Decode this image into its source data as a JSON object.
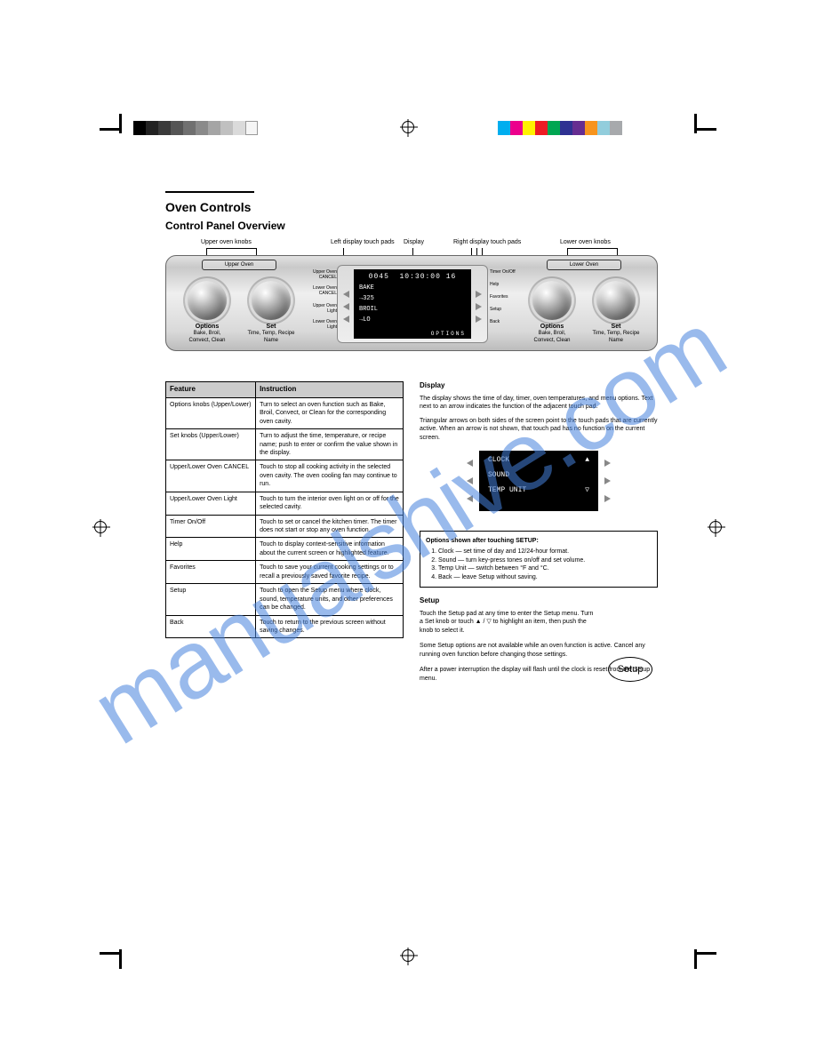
{
  "section": {
    "title": "Oven Controls",
    "subtitle": "Control Panel Overview"
  },
  "panel": {
    "upper_oven_label": "Upper Oven",
    "lower_oven_label": "Lower Oven",
    "knob_options_title": "Options",
    "knob_options_sub": "Bake, Broil, Convect, Clean",
    "knob_set_title": "Set",
    "knob_set_sub": "Time, Temp, Recipe Name",
    "side_labels": {
      "upper_cancel": "Upper Oven\nCANCEL",
      "lower_cancel": "Lower Oven\nCANCEL",
      "upper_light": "Upper Oven\nLight",
      "lower_light": "Lower Oven\nLight",
      "timer": "Timer\nOn/Off",
      "help": "Help",
      "favorites": "Favorites",
      "setup": "Setup",
      "back": "Back"
    },
    "lcd": {
      "timer_l": "0045",
      "clock": "10:30:00",
      "ampm": "16",
      "line1_l": "BAKE",
      "line2_l": "→325",
      "line3_l": "BROIL",
      "line4_l": "→LO",
      "options": "OPTIONS"
    },
    "callouts": {
      "upper_knobs": "Upper oven knobs",
      "left_touch": "Left display touch pads",
      "display": "Display",
      "right_touch": "Right display touch pads",
      "lower_knobs": "Lower oven knobs"
    }
  },
  "table": {
    "h1": "Feature",
    "h2": "Instruction",
    "rows": [
      {
        "f": "Options knobs (Upper/Lower)",
        "i": "Turn to select an oven function such as Bake, Broil, Convect, or Clean for the corresponding oven cavity."
      },
      {
        "f": "Set knobs (Upper/Lower)",
        "i": "Turn to adjust the time, temperature, or recipe name; push to enter or confirm the value shown in the display."
      },
      {
        "f": "Upper/Lower Oven CANCEL",
        "i": "Touch to stop all cooking activity in the selected oven cavity. The oven cooling fan may continue to run."
      },
      {
        "f": "Upper/Lower Oven Light",
        "i": "Touch to turn the interior oven light on or off for the selected cavity."
      },
      {
        "f": "Timer On/Off",
        "i": "Touch to set or cancel the kitchen timer. The timer does not start or stop any oven function."
      },
      {
        "f": "Help",
        "i": "Touch to display context-sensitive information about the current screen or highlighted feature."
      },
      {
        "f": "Favorites",
        "i": "Touch to save your current cooking settings or to recall a previously saved favorite recipe."
      },
      {
        "f": "Setup",
        "i": "Touch to open the Setup menu where clock, sound, temperature units, and other preferences can be changed."
      },
      {
        "f": "Back",
        "i": "Touch to return to the previous screen without saving changes."
      }
    ]
  },
  "rightcol": {
    "display_h": "Display",
    "display_p1": "The display shows the time of day, timer, oven temperatures, and menu options. Text next to an arrow indicates the function of the adjacent touch pad.",
    "display_p2": "Triangular arrows on both sides of the screen point to the touch pads that are currently active. When an arrow is not shown, that touch pad has no function on the current screen.",
    "mini_lcd": {
      "clock_h": "CLOCK",
      "sound_h": "SOUND",
      "temp_h": "TEMP UNIT",
      "up": "▲",
      "down": "▽"
    },
    "opts_h": "Options shown after touching SETUP:",
    "opts": [
      "Clock — set time of day and 12/24-hour format.",
      "Sound — turn key-press tones on/off and set volume.",
      "Temp Unit — switch between °F and °C.",
      "Back — leave Setup without saving."
    ],
    "setup_h": "Setup",
    "setup_btn": "Setup",
    "setup_p": "Touch the Setup pad at any time to enter the Setup menu. Turn a Set knob or touch ▲ / ▽ to highlight an item, then push the knob to select it.",
    "foot_p1": "Some Setup options are not available while an oven function is active. Cancel any running oven function before changing those settings.",
    "foot_p2": "After a power interruption the display will flash until the clock is reset from the Setup menu."
  },
  "colors": {
    "gray_bar": [
      "#000000",
      "#222222",
      "#3a3a3a",
      "#555555",
      "#707070",
      "#8a8a8a",
      "#a5a5a5",
      "#c0c0c0",
      "#dadada",
      "#f5f5f5",
      "#ffffff"
    ],
    "color_bar": [
      "#00aeef",
      "#ec008c",
      "#fff200",
      "#ed1c24",
      "#00a651",
      "#2e3192",
      "#662d91",
      "#f7941d",
      "#92cddc",
      "#a7a9ac"
    ]
  }
}
